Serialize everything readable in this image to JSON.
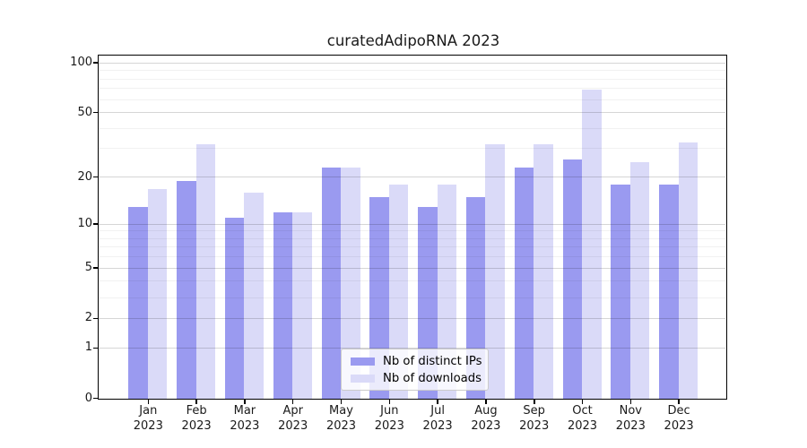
{
  "title": "curatedAdipoRNA 2023",
  "chart_data": {
    "type": "bar",
    "title": "curatedAdipoRNA 2023",
    "months": [
      "Jan",
      "Feb",
      "Mar",
      "Apr",
      "May",
      "Jun",
      "Jul",
      "Aug",
      "Sep",
      "Oct",
      "Nov",
      "Dec"
    ],
    "year": "2023",
    "series": [
      {
        "name": "Nb of distinct IPs",
        "color": "#9a9af0",
        "values": [
          13,
          19,
          11,
          12,
          23,
          15,
          13,
          15,
          23,
          26,
          18,
          18
        ]
      },
      {
        "name": "Nb of downloads",
        "color": "#dadaf8",
        "values": [
          17,
          32,
          16,
          12,
          23,
          18,
          18,
          32,
          32,
          69,
          25,
          33
        ]
      }
    ],
    "y_axis": {
      "scale": "log1p",
      "range": [
        0,
        100
      ],
      "ticks": [
        0,
        1,
        2,
        5,
        10,
        20,
        50,
        100
      ],
      "minor_ticks": [
        3,
        4,
        6,
        7,
        8,
        9,
        30,
        40,
        60,
        70,
        80,
        90
      ]
    },
    "grid": true,
    "legend": {
      "position": "lower center"
    },
    "colors": {
      "spine": "#000000",
      "major_grid": "#d6d6d6",
      "minor_grid": "#efefef"
    }
  }
}
